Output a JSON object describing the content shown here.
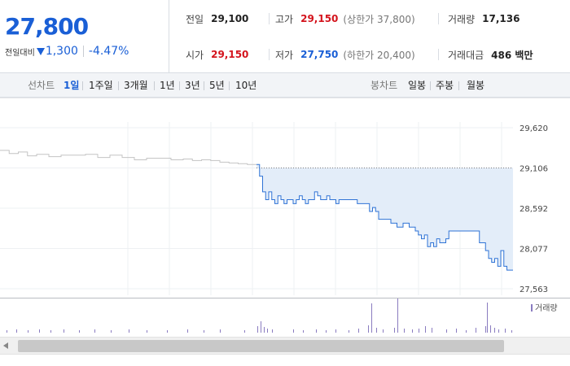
{
  "summary": {
    "price": "27,800",
    "change_label": "전일대비",
    "change_value": "1,300",
    "change_pct": "-4.47%",
    "prev_close": {
      "label": "전일",
      "value": "29,100"
    },
    "high": {
      "label": "고가",
      "value": "29,150",
      "sub": "(상한가 37,800)"
    },
    "volume": {
      "label": "거래량",
      "value": "17,136"
    },
    "open": {
      "label": "시가",
      "value": "29,150"
    },
    "low": {
      "label": "저가",
      "value": "27,750",
      "sub": "(하한가 20,400)"
    },
    "amount": {
      "label": "거래대금",
      "value": "486 백만"
    }
  },
  "toolbar": {
    "line_title": "선차트",
    "line_periods": [
      "1일",
      "1주일",
      "3개월",
      "1년",
      "3년",
      "5년",
      "10년"
    ],
    "active_period": "1일",
    "candle_title": "봉차트",
    "candle_periods": [
      "일봉",
      "주봉",
      "월봉"
    ]
  },
  "colors": {
    "up": "#d4141d",
    "down": "#1a5fd6",
    "today_line": "#2f73d6",
    "today_fill": "#e3edf9",
    "prev_line": "#c4c4c4",
    "volume_bar": "#8a7cc0"
  },
  "chart_data": [
    {
      "type": "line",
      "title": "",
      "xlabel": "",
      "ylabel": "",
      "ylim": [
        27563,
        29620
      ],
      "yticks": [
        29620,
        29106,
        28592,
        28077,
        27563
      ],
      "grid": true,
      "reference": {
        "value": 29106,
        "style": "dotted"
      },
      "series": [
        {
          "role": "previous_day",
          "x": [
            0,
            3,
            6,
            9,
            12,
            16,
            20,
            24,
            28,
            32,
            36,
            40,
            44,
            48,
            52,
            56,
            60,
            63,
            66,
            69,
            72,
            75,
            78,
            81,
            84
          ],
          "values": [
            29330,
            29290,
            29310,
            29260,
            29280,
            29250,
            29270,
            29270,
            29280,
            29240,
            29270,
            29240,
            29210,
            29230,
            29230,
            29210,
            29220,
            29200,
            29210,
            29200,
            29180,
            29170,
            29160,
            29150,
            29150
          ]
        },
        {
          "role": "today",
          "x": [
            84,
            85,
            86,
            87,
            88,
            89,
            90,
            91,
            92,
            93,
            94,
            95,
            96,
            97,
            98,
            99,
            100,
            101,
            102,
            103,
            104,
            105,
            106,
            107,
            108,
            109,
            110,
            111,
            112,
            113,
            114,
            115,
            116,
            117,
            118,
            119,
            120,
            121,
            122,
            123,
            124,
            125,
            126,
            127,
            128,
            129,
            130,
            131,
            132,
            133,
            134,
            135,
            136,
            137,
            138,
            139,
            140,
            141,
            142,
            143,
            144,
            145,
            146,
            147,
            148,
            149,
            150,
            151,
            152,
            153,
            154,
            155,
            156,
            157,
            158,
            159,
            160,
            161,
            162,
            163,
            164,
            165,
            166,
            167,
            168
          ],
          "values": [
            29150,
            29000,
            28800,
            28700,
            28800,
            28700,
            28650,
            28750,
            28700,
            28650,
            28700,
            28700,
            28650,
            28700,
            28750,
            28700,
            28650,
            28700,
            28700,
            28800,
            28750,
            28700,
            28700,
            28750,
            28700,
            28700,
            28650,
            28700,
            28700,
            28700,
            28700,
            28700,
            28700,
            28650,
            28650,
            28650,
            28650,
            28550,
            28600,
            28550,
            28450,
            28450,
            28450,
            28450,
            28400,
            28400,
            28350,
            28350,
            28400,
            28400,
            28350,
            28350,
            28300,
            28250,
            28200,
            28250,
            28100,
            28150,
            28100,
            28200,
            28150,
            28150,
            28200,
            28300,
            28300,
            28300,
            28300,
            28300,
            28300,
            28300,
            28300,
            28300,
            28300,
            28150,
            28150,
            28050,
            27950,
            27900,
            27950,
            27850,
            28050,
            27850,
            27800,
            27800,
            27800
          ]
        }
      ]
    },
    {
      "type": "bar",
      "legend": "거래량",
      "legend_position": "top-right"
    }
  ]
}
